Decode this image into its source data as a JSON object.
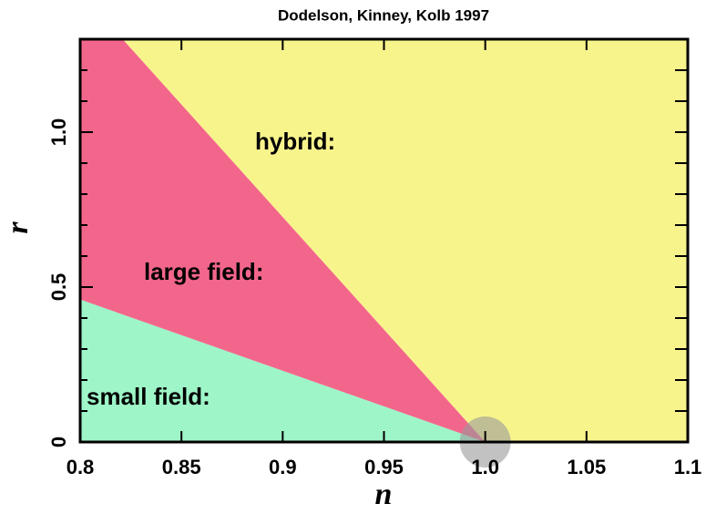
{
  "chart_data": {
    "type": "region",
    "title": "Dodelson, Kinney, Kolb 1997",
    "x_label": "n",
    "y_label": "r",
    "xlim": [
      0.8,
      1.1
    ],
    "ylim": [
      0,
      1.3
    ],
    "xticks": [
      0.8,
      0.85,
      0.9,
      0.95,
      {
        "value": 1.0,
        "label": "1.0"
      },
      1.05,
      1.1
    ],
    "yticks": [
      0,
      0.5,
      {
        "value": 1.0,
        "label": "1.0"
      }
    ],
    "yminor_ticks": [
      0.1,
      0.2,
      0.3,
      0.4,
      0.6,
      0.7,
      0.8,
      0.9,
      1.1,
      1.2
    ],
    "series": [
      {
        "name": "small field:",
        "color": "#9ef5c8",
        "x": [
          0.8,
          1.0,
          0.8
        ],
        "y": [
          0,
          0,
          0.46
        ]
      },
      {
        "name": "large field:",
        "color": "#f3668c",
        "x": [
          0.8,
          1.0,
          0.821,
          0.8
        ],
        "y": [
          0.46,
          0,
          1.3,
          1.3
        ]
      },
      {
        "name": "hybrid:",
        "color": "#f8f48c",
        "x": [
          0.821,
          1.0,
          1.1,
          1.1
        ],
        "y": [
          1.3,
          0,
          0,
          1.3
        ]
      }
    ],
    "marker": {
      "x": 1.0,
      "y": 0,
      "color": "#999999"
    }
  }
}
